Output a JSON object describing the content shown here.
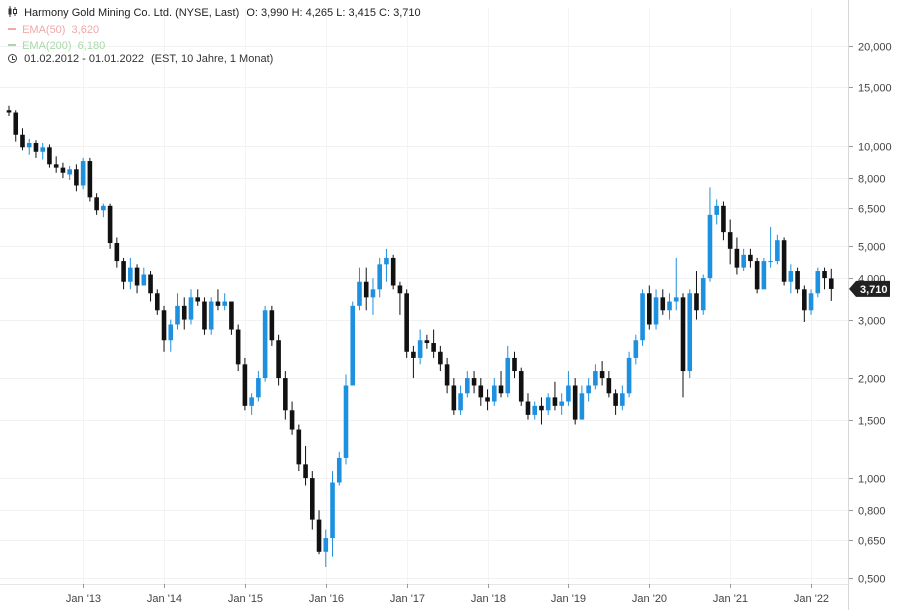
{
  "header": {
    "instrument": "Harmony Gold Mining Co. Ltd. (NYSE, Last)",
    "ohlc": "O: 3,990  H: 4,265  L: 3,415  C: 3,710",
    "ema50_label": "EMA(50)",
    "ema50_value": "3,620",
    "ema200_label": "EMA(200)",
    "ema200_value": "6,180",
    "range": "01.02.2012 - 01.01.2022",
    "range_info": "(EST, 10 Jahre, 1 Monat)"
  },
  "colors": {
    "up": "#1e90e0",
    "down": "#111111",
    "ema50": "#f0a8a8",
    "ema200": "#a8d8a8",
    "badge": "#222222"
  },
  "price_badge": "3,710",
  "chart_data": {
    "type": "candlestick",
    "y_scale": "log",
    "ylim": [
      0.48,
      26
    ],
    "y_ticks": [
      {
        "v": 20,
        "label": "20,000"
      },
      {
        "v": 15,
        "label": "15,000"
      },
      {
        "v": 10,
        "label": "10,000"
      },
      {
        "v": 8,
        "label": "8,000"
      },
      {
        "v": 6.5,
        "label": "6,500"
      },
      {
        "v": 5,
        "label": "5,000"
      },
      {
        "v": 4,
        "label": "4,000"
      },
      {
        "v": 3,
        "label": "3,000"
      },
      {
        "v": 2,
        "label": "2,000"
      },
      {
        "v": 1.5,
        "label": "1,500"
      },
      {
        "v": 1,
        "label": "1,000"
      },
      {
        "v": 0.8,
        "label": "0,800"
      },
      {
        "v": 0.65,
        "label": "0,650"
      },
      {
        "v": 0.5,
        "label": "0,500"
      }
    ],
    "x_ticks": [
      {
        "label": "Jan '13",
        "index": 11
      },
      {
        "label": "Jan '14",
        "index": 23
      },
      {
        "label": "Jan '15",
        "index": 35
      },
      {
        "label": "Jan '16",
        "index": 47
      },
      {
        "label": "Jan '17",
        "index": 59
      },
      {
        "label": "Jan '18",
        "index": 71
      },
      {
        "label": "Jan '19",
        "index": 83
      },
      {
        "label": "Jan '20",
        "index": 95
      },
      {
        "label": "Jan '21",
        "index": 107
      },
      {
        "label": "Jan '22",
        "index": 119
      }
    ],
    "first_period": "2012-02",
    "candles": [
      [
        12.8,
        13.2,
        12.3,
        12.6
      ],
      [
        12.6,
        12.8,
        10.3,
        10.8
      ],
      [
        10.8,
        11.3,
        9.7,
        9.9
      ],
      [
        9.9,
        10.5,
        9.4,
        10.2
      ],
      [
        10.2,
        10.4,
        9.2,
        9.6
      ],
      [
        9.6,
        10.2,
        9.1,
        9.9
      ],
      [
        9.9,
        10.1,
        8.6,
        8.8
      ],
      [
        8.8,
        9.3,
        8.3,
        8.6
      ],
      [
        8.6,
        8.9,
        8.0,
        8.3
      ],
      [
        8.2,
        8.7,
        7.9,
        8.5
      ],
      [
        8.5,
        8.8,
        7.3,
        7.6
      ],
      [
        7.6,
        9.2,
        7.4,
        9.0
      ],
      [
        9.0,
        9.2,
        6.8,
        7.0
      ],
      [
        7.0,
        7.2,
        6.2,
        6.4
      ],
      [
        6.4,
        6.7,
        6.1,
        6.6
      ],
      [
        6.6,
        6.7,
        4.9,
        5.1
      ],
      [
        5.1,
        5.3,
        4.3,
        4.5
      ],
      [
        4.5,
        4.6,
        3.7,
        3.9
      ],
      [
        3.9,
        4.6,
        3.7,
        4.3
      ],
      [
        4.3,
        4.4,
        3.6,
        3.8
      ],
      [
        3.8,
        4.3,
        3.8,
        4.1
      ],
      [
        4.1,
        4.2,
        3.4,
        3.6
      ],
      [
        3.6,
        3.7,
        3.1,
        3.2
      ],
      [
        3.2,
        3.3,
        2.4,
        2.6
      ],
      [
        2.6,
        3.0,
        2.4,
        2.9
      ],
      [
        2.9,
        3.6,
        2.8,
        3.3
      ],
      [
        3.3,
        3.5,
        2.8,
        3.0
      ],
      [
        3.0,
        3.7,
        2.9,
        3.5
      ],
      [
        3.5,
        3.7,
        3.3,
        3.4
      ],
      [
        3.4,
        3.5,
        2.7,
        2.8
      ],
      [
        2.8,
        3.5,
        2.7,
        3.4
      ],
      [
        3.4,
        3.7,
        3.2,
        3.3
      ],
      [
        3.3,
        3.6,
        3.2,
        3.4
      ],
      [
        3.4,
        3.4,
        2.7,
        2.8
      ],
      [
        2.8,
        2.9,
        2.1,
        2.2
      ],
      [
        2.2,
        2.3,
        1.6,
        1.65
      ],
      [
        1.65,
        1.8,
        1.55,
        1.75
      ],
      [
        1.75,
        2.1,
        1.7,
        2.0
      ],
      [
        2.0,
        3.3,
        1.95,
        3.2
      ],
      [
        3.2,
        3.3,
        2.5,
        2.6
      ],
      [
        2.6,
        2.7,
        1.9,
        2.0
      ],
      [
        2.0,
        2.1,
        1.5,
        1.6
      ],
      [
        1.6,
        1.7,
        1.35,
        1.4
      ],
      [
        1.4,
        1.45,
        1.05,
        1.1
      ],
      [
        1.1,
        1.25,
        0.95,
        1.0
      ],
      [
        1.0,
        1.05,
        0.7,
        0.75
      ],
      [
        0.75,
        0.8,
        0.59,
        0.6
      ],
      [
        0.6,
        0.7,
        0.54,
        0.66
      ],
      [
        0.66,
        1.05,
        0.58,
        0.97
      ],
      [
        0.97,
        1.2,
        0.95,
        1.15
      ],
      [
        1.15,
        2.05,
        1.1,
        1.9
      ],
      [
        1.9,
        3.4,
        1.9,
        3.3
      ],
      [
        3.3,
        4.3,
        3.2,
        3.9
      ],
      [
        3.9,
        4.3,
        3.2,
        3.5
      ],
      [
        3.5,
        4.0,
        3.1,
        3.7
      ],
      [
        3.7,
        4.6,
        3.5,
        4.4
      ],
      [
        4.4,
        4.9,
        3.9,
        4.6
      ],
      [
        4.6,
        4.7,
        3.7,
        3.8
      ],
      [
        3.8,
        3.9,
        3.1,
        3.6
      ],
      [
        3.6,
        3.7,
        2.3,
        2.4
      ],
      [
        2.4,
        2.5,
        2.0,
        2.3
      ],
      [
        2.3,
        2.8,
        2.2,
        2.6
      ],
      [
        2.6,
        2.7,
        2.45,
        2.55
      ],
      [
        2.55,
        2.8,
        2.3,
        2.4
      ],
      [
        2.4,
        2.5,
        2.1,
        2.2
      ],
      [
        2.2,
        2.3,
        1.8,
        1.9
      ],
      [
        1.9,
        2.0,
        1.55,
        1.6
      ],
      [
        1.6,
        1.9,
        1.55,
        1.8
      ],
      [
        1.8,
        2.1,
        1.75,
        2.0
      ],
      [
        2.0,
        2.1,
        1.8,
        1.9
      ],
      [
        1.9,
        2.0,
        1.65,
        1.75
      ],
      [
        1.75,
        1.85,
        1.6,
        1.7
      ],
      [
        1.7,
        2.0,
        1.65,
        1.9
      ],
      [
        1.9,
        2.1,
        1.75,
        1.8
      ],
      [
        1.8,
        2.5,
        1.75,
        2.3
      ],
      [
        2.3,
        2.4,
        2.0,
        2.1
      ],
      [
        2.1,
        2.15,
        1.65,
        1.7
      ],
      [
        1.7,
        1.8,
        1.5,
        1.55
      ],
      [
        1.55,
        1.7,
        1.5,
        1.65
      ],
      [
        1.65,
        1.75,
        1.45,
        1.6
      ],
      [
        1.6,
        1.8,
        1.55,
        1.75
      ],
      [
        1.75,
        1.95,
        1.6,
        1.65
      ],
      [
        1.65,
        1.8,
        1.55,
        1.7
      ],
      [
        1.7,
        2.1,
        1.65,
        1.9
      ],
      [
        1.9,
        2.0,
        1.45,
        1.5
      ],
      [
        1.5,
        1.9,
        1.5,
        1.8
      ],
      [
        1.8,
        2.0,
        1.7,
        1.9
      ],
      [
        1.9,
        2.2,
        1.85,
        2.1
      ],
      [
        2.1,
        2.25,
        1.9,
        2.0
      ],
      [
        2.0,
        2.1,
        1.75,
        1.8
      ],
      [
        1.8,
        1.85,
        1.55,
        1.65
      ],
      [
        1.65,
        1.9,
        1.6,
        1.8
      ],
      [
        1.8,
        2.4,
        1.75,
        2.3
      ],
      [
        2.3,
        2.7,
        2.2,
        2.6
      ],
      [
        2.6,
        3.7,
        2.5,
        3.6
      ],
      [
        3.6,
        3.8,
        2.8,
        2.9
      ],
      [
        2.9,
        3.7,
        2.8,
        3.5
      ],
      [
        3.5,
        3.7,
        3.1,
        3.2
      ],
      [
        3.2,
        3.6,
        3.0,
        3.4
      ],
      [
        3.4,
        4.6,
        3.2,
        3.5
      ],
      [
        3.5,
        3.6,
        1.75,
        2.1
      ],
      [
        2.1,
        3.7,
        2.0,
        3.6
      ],
      [
        3.6,
        4.2,
        3.0,
        3.2
      ],
      [
        3.2,
        4.1,
        3.1,
        4.0
      ],
      [
        4.0,
        7.5,
        3.9,
        6.2
      ],
      [
        6.2,
        6.9,
        5.8,
        6.6
      ],
      [
        6.6,
        6.8,
        5.2,
        5.5
      ],
      [
        5.5,
        6.0,
        4.4,
        4.9
      ],
      [
        4.9,
        5.3,
        4.1,
        4.3
      ],
      [
        4.3,
        4.9,
        4.2,
        4.7
      ],
      [
        4.7,
        4.9,
        4.3,
        4.5
      ],
      [
        4.5,
        4.6,
        3.6,
        3.7
      ],
      [
        3.7,
        4.6,
        3.7,
        4.5
      ],
      [
        4.5,
        5.7,
        4.3,
        4.5
      ],
      [
        4.5,
        5.4,
        4.4,
        5.2
      ],
      [
        5.2,
        5.3,
        3.8,
        3.9
      ],
      [
        3.9,
        4.4,
        3.6,
        4.2
      ],
      [
        4.2,
        4.3,
        3.6,
        3.7
      ],
      [
        3.7,
        3.8,
        2.95,
        3.2
      ],
      [
        3.2,
        3.7,
        3.1,
        3.6
      ],
      [
        3.6,
        4.3,
        3.5,
        4.2
      ],
      [
        4.2,
        4.3,
        3.7,
        4.0
      ],
      [
        3.99,
        4.265,
        3.415,
        3.71
      ]
    ]
  }
}
